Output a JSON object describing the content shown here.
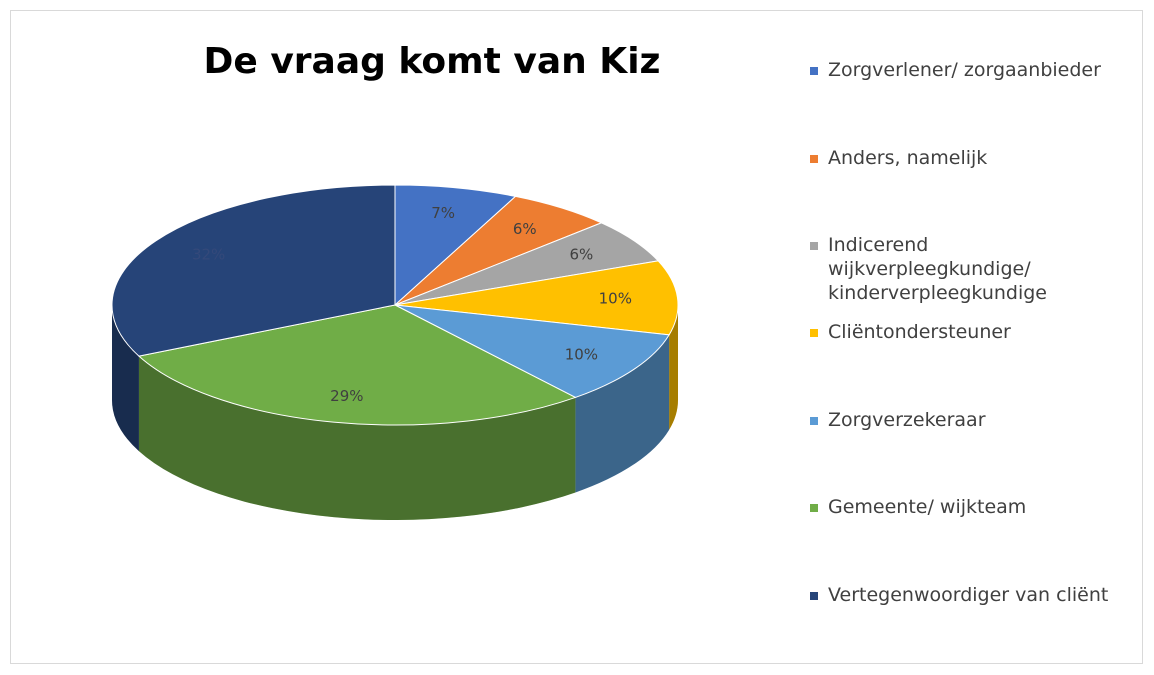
{
  "chart_data": {
    "type": "pie",
    "title": "De vraag komt van Kiz",
    "categories": [
      "Zorgverlener/ zorgaanbieder",
      "Anders, namelijk",
      "Indicerend wijkverpleegkundige/ kinderverpleegkundige",
      "Cliëntondersteuner",
      "Zorgverzekeraar",
      "Gemeente/ wijkteam",
      "Vertegenwoordiger van cliënt"
    ],
    "values": [
      7,
      6,
      6,
      10,
      10,
      29,
      32
    ],
    "value_labels": [
      "7%",
      "6%",
      "6%",
      "10%",
      "10%",
      "29%",
      "32%"
    ],
    "colors": [
      "#4472c4",
      "#ed7d31",
      "#a5a5a5",
      "#ffc000",
      "#5b9bd5",
      "#70ad47",
      "#264478"
    ],
    "legend": "right"
  }
}
